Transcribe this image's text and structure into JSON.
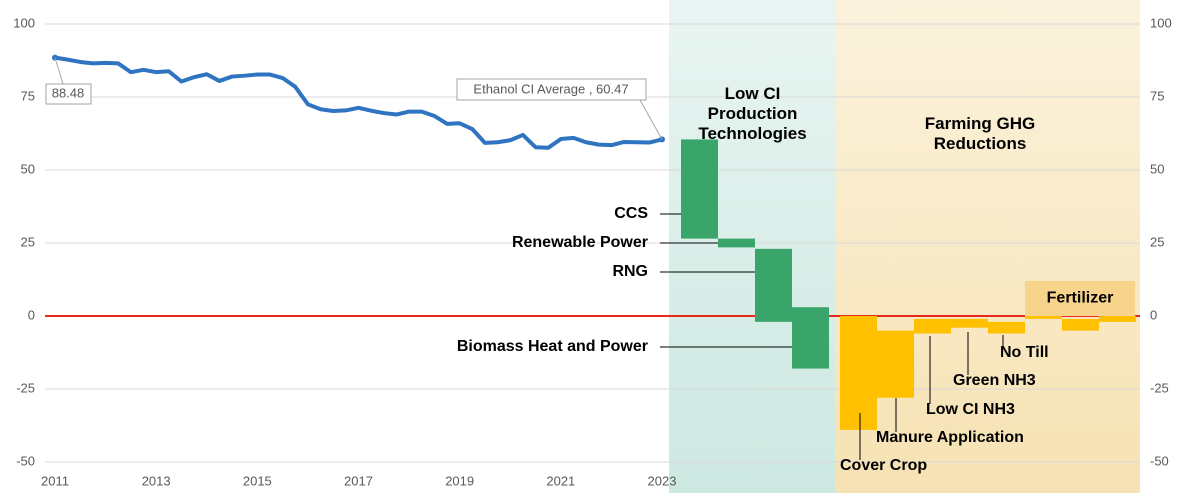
{
  "chart_data": {
    "type": "line",
    "x": [
      2011,
      2011.25,
      2011.5,
      2011.75,
      2012,
      2012.25,
      2012.5,
      2012.75,
      2013,
      2013.25,
      2013.5,
      2013.75,
      2014,
      2014.25,
      2014.5,
      2014.75,
      2015,
      2015.25,
      2015.5,
      2015.75,
      2016,
      2016.25,
      2016.5,
      2016.75,
      2017,
      2017.25,
      2017.5,
      2017.75,
      2018,
      2018.25,
      2018.5,
      2018.75,
      2019,
      2019.25,
      2019.5,
      2019.75,
      2020,
      2020.25,
      2020.5,
      2020.75,
      2021,
      2021.25,
      2021.5,
      2021.75,
      2022,
      2022.25,
      2022.5,
      2022.75,
      2023
    ],
    "series": [
      {
        "color": "#2f74c0",
        "values": [
          88.48,
          87.8,
          87,
          86.5,
          86.7,
          86.5,
          83.5,
          84.3,
          83.5,
          83.8,
          80.3,
          81.8,
          82.8,
          80.5,
          82,
          82.3,
          82.7,
          82.7,
          81.5,
          78.5,
          72.5,
          70.8,
          70.2,
          70.4,
          71.3,
          70.3,
          69.5,
          69,
          70,
          70,
          68.5,
          65.8,
          66,
          64,
          59.3,
          59.5,
          60.2,
          62,
          57.8,
          57.6,
          60.6,
          61,
          59.5,
          58.7,
          58.5,
          59.6,
          59.5,
          59.4,
          60.47
        ]
      }
    ],
    "annotations": [
      "88.48",
      "Ethanol CI Average , 60.47"
    ],
    "xlim": [
      2011,
      2023
    ],
    "xticks": [
      2011,
      2013,
      2015,
      2017,
      2019,
      2021,
      2023
    ],
    "ylim": [
      -50,
      100
    ],
    "yticks": [
      -50,
      -25,
      0,
      25,
      50,
      75,
      100
    ],
    "y2lim": [
      -50,
      100
    ],
    "y2ticks": [
      -50,
      -25,
      0,
      25,
      50,
      75,
      100
    ],
    "grid": true,
    "zero_line_color": "#e8291c",
    "regions": [
      {
        "title": "Low CI Production Technologies",
        "color": "#3aa56b",
        "background": "#cde8e1",
        "bars": [
          {
            "name": "CCS",
            "start": 60.47,
            "end": 26.5
          },
          {
            "name": "Renewable Power",
            "start": 26.5,
            "end": 23.5
          },
          {
            "name": "RNG",
            "start": 23,
            "end": -2
          },
          {
            "name": "Biomass Heat and Power",
            "start": 3,
            "end": -18
          }
        ]
      },
      {
        "title": "Farming GHG Reductions",
        "color": "#ffc000",
        "background": "#f6e2b3",
        "bars": [
          {
            "name": "Cover Crop",
            "start": 0,
            "end": -39
          },
          {
            "name": "Manure Application",
            "start": -5,
            "end": -28
          },
          {
            "name": "Low CI NH3",
            "start": -1,
            "end": -6
          },
          {
            "name": "Green NH3",
            "start": -1,
            "end": -4
          },
          {
            "name": "No Till",
            "start": -2,
            "end": -6
          },
          {
            "name": "Fertilizer",
            "start": 0,
            "end": -1
          },
          {
            "name": null,
            "start": -1,
            "end": -5
          },
          {
            "name": null,
            "start": 0,
            "end": -2
          }
        ]
      }
    ]
  }
}
